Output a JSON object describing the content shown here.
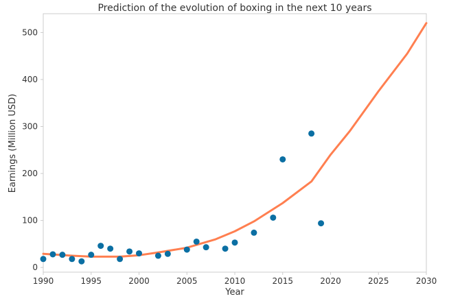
{
  "chart_data": {
    "type": "scatter",
    "title": "Prediction of the evolution of boxing in the next 10 years",
    "xlabel": "Year",
    "ylabel": "Earnings (Million USD)",
    "xlim": [
      1990,
      2030
    ],
    "ylim": [
      -10,
      540
    ],
    "x_ticks": [
      1990,
      1995,
      2000,
      2005,
      2010,
      2015,
      2020,
      2025,
      2030
    ],
    "y_ticks": [
      0,
      100,
      200,
      300,
      400,
      500
    ],
    "grid": false,
    "legend": "none",
    "colors": {
      "points": "#0b6fa3",
      "fit_line": "#ff7f50",
      "axes": "#cccccc",
      "text": "#333333"
    },
    "series": [
      {
        "kind": "scatter",
        "points": [
          {
            "x": 1990,
            "y": 18
          },
          {
            "x": 1991,
            "y": 28
          },
          {
            "x": 1992,
            "y": 27
          },
          {
            "x": 1993,
            "y": 18
          },
          {
            "x": 1994,
            "y": 13
          },
          {
            "x": 1995,
            "y": 27
          },
          {
            "x": 1996,
            "y": 46
          },
          {
            "x": 1997,
            "y": 40
          },
          {
            "x": 1998,
            "y": 18
          },
          {
            "x": 1999,
            "y": 34
          },
          {
            "x": 2000,
            "y": 30
          },
          {
            "x": 2002,
            "y": 25
          },
          {
            "x": 2003,
            "y": 29
          },
          {
            "x": 2005,
            "y": 38
          },
          {
            "x": 2006,
            "y": 55
          },
          {
            "x": 2007,
            "y": 43
          },
          {
            "x": 2009,
            "y": 40
          },
          {
            "x": 2010,
            "y": 53
          },
          {
            "x": 2012,
            "y": 74
          },
          {
            "x": 2014,
            "y": 106
          },
          {
            "x": 2015,
            "y": 230
          },
          {
            "x": 2018,
            "y": 285
          },
          {
            "x": 2019,
            "y": 94
          }
        ]
      },
      {
        "kind": "line",
        "points": [
          {
            "x": 1990,
            "y": 29
          },
          {
            "x": 1993,
            "y": 25
          },
          {
            "x": 1995,
            "y": 23
          },
          {
            "x": 1998,
            "y": 23
          },
          {
            "x": 2000,
            "y": 26
          },
          {
            "x": 2002,
            "y": 32
          },
          {
            "x": 2005,
            "y": 42
          },
          {
            "x": 2008,
            "y": 60
          },
          {
            "x": 2010,
            "y": 77
          },
          {
            "x": 2012,
            "y": 98
          },
          {
            "x": 2015,
            "y": 137
          },
          {
            "x": 2018,
            "y": 183
          },
          {
            "x": 2020,
            "y": 240
          },
          {
            "x": 2022,
            "y": 290
          },
          {
            "x": 2025,
            "y": 375
          },
          {
            "x": 2028,
            "y": 455
          },
          {
            "x": 2030,
            "y": 520
          }
        ]
      }
    ]
  }
}
